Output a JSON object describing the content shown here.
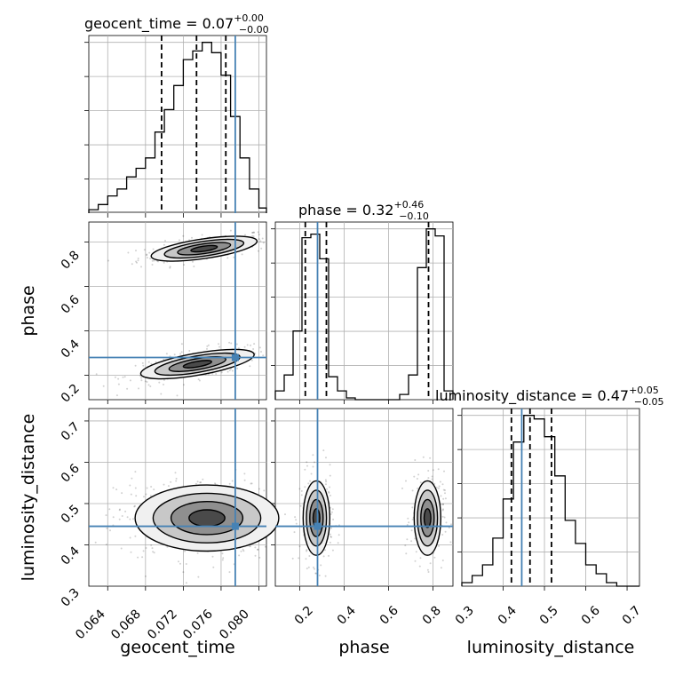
{
  "chart_data": {
    "type": "corner",
    "parameters": [
      "geocent_time",
      "phase",
      "luminosity_distance"
    ],
    "titles": [
      {
        "param": "geocent_time",
        "median": "0.07",
        "plus": "+0.00",
        "minus": "−0.00"
      },
      {
        "param": "phase",
        "median": "0.32",
        "plus": "+0.46",
        "minus": "−0.10"
      },
      {
        "param": "luminosity_distance",
        "median": "0.47",
        "plus": "+0.05",
        "minus": "−0.05"
      }
    ],
    "title_separator": " = ",
    "ranges": {
      "geocent_time": [
        0.062,
        0.0808
      ],
      "phase": [
        0.09,
        0.89
      ],
      "luminosity_distance": [
        0.3,
        0.73
      ]
    },
    "ticks": {
      "geocent_time": [
        "0.064",
        "0.068",
        "0.072",
        "0.076",
        "0.080"
      ],
      "phase": [
        "0.2",
        "0.4",
        "0.6",
        "0.8"
      ],
      "luminosity_distance": [
        "0.3",
        "0.4",
        "0.5",
        "0.6",
        "0.7"
      ]
    },
    "truth": {
      "geocent_time": 0.0775,
      "phase": 0.28,
      "luminosity_distance": 0.445
    },
    "truth_color": "#4682b4",
    "quantiles": {
      "geocent_time": [
        0.0697,
        0.0734,
        0.0765
      ],
      "phase": [
        0.225,
        0.32,
        0.78
      ],
      "luminosity_distance": [
        0.42,
        0.465,
        0.517
      ]
    },
    "hist_1d": {
      "geocent_time": {
        "edges": [
          0.062,
          0.063,
          0.064,
          0.065,
          0.066,
          0.067,
          0.068,
          0.069,
          0.07,
          0.071,
          0.072,
          0.073,
          0.074,
          0.075,
          0.076,
          0.077,
          0.078,
          0.079,
          0.08,
          0.0808
        ],
        "counts": [
          2,
          5,
          10,
          14,
          21,
          26,
          32,
          47,
          60,
          74,
          89,
          94,
          99,
          93,
          80,
          56,
          32,
          14,
          3
        ]
      },
      "phase": {
        "edges": [
          0.09,
          0.13,
          0.17,
          0.21,
          0.25,
          0.29,
          0.33,
          0.37,
          0.41,
          0.45,
          0.49,
          0.53,
          0.57,
          0.61,
          0.65,
          0.69,
          0.73,
          0.77,
          0.81,
          0.85,
          0.89
        ],
        "counts": [
          5,
          14,
          39,
          92,
          94,
          80,
          13,
          5,
          1,
          0,
          0,
          0,
          0,
          0,
          3,
          14,
          75,
          97,
          93,
          5
        ]
      },
      "luminosity_distance": {
        "edges": [
          0.3,
          0.325,
          0.35,
          0.375,
          0.4,
          0.425,
          0.45,
          0.475,
          0.5,
          0.525,
          0.55,
          0.575,
          0.6,
          0.625,
          0.65,
          0.675,
          0.7,
          0.73
        ],
        "counts": [
          2,
          6,
          12,
          27,
          49,
          81,
          96,
          94,
          84,
          62,
          37,
          24,
          12,
          7,
          2,
          0,
          0
        ]
      }
    },
    "blobs_2d": [
      {
        "panel": "phase-vs-geocent_time",
        "mean": [
          0.0742,
          0.77
        ],
        "sd": [
          0.0028,
          0.028
        ],
        "rho": 0.6,
        "n": 260
      },
      {
        "panel": "phase-vs-geocent_time",
        "mean": [
          0.0735,
          0.25
        ],
        "sd": [
          0.003,
          0.033
        ],
        "rho": 0.65,
        "n": 280
      },
      {
        "panel": "luminosity_distance-vs-geocent_time",
        "mean": [
          0.0745,
          0.465
        ],
        "sd": [
          0.0038,
          0.04
        ],
        "rho": 0.0,
        "n": 520
      },
      {
        "panel": "luminosity_distance-vs-phase",
        "mean": [
          0.275,
          0.465
        ],
        "sd": [
          0.03,
          0.045
        ],
        "rho": 0.0,
        "n": 260
      },
      {
        "panel": "luminosity_distance-vs-phase",
        "mean": [
          0.775,
          0.465
        ],
        "sd": [
          0.03,
          0.045
        ],
        "rho": 0.0,
        "n": 260
      }
    ],
    "contour_levels_sigma": [
      0.5,
      1.0,
      1.5,
      2.0
    ],
    "grid": true
  }
}
